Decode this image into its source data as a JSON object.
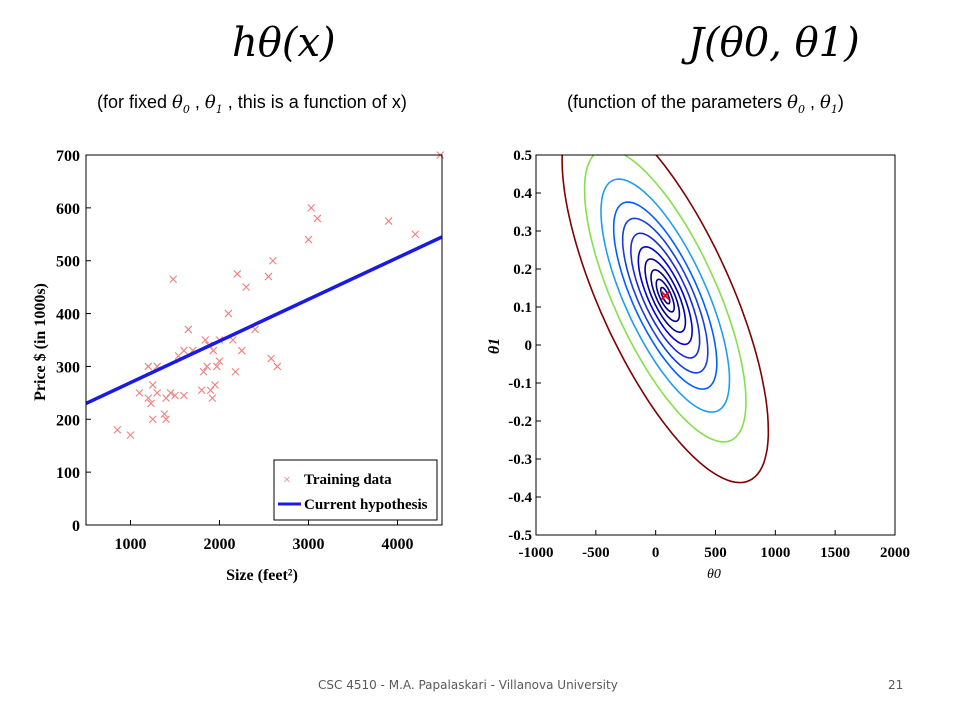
{
  "slide": {
    "left_formula": "hθ(x)",
    "right_formula": "J(θ0, θ1)",
    "left_subtitle": {
      "pre": "(for fixed ",
      "t0": "θ",
      "s0": "0",
      "mid": " , ",
      "t1": "θ",
      "s1": "1",
      "post": " , this is a function of x)"
    },
    "right_subtitle": {
      "pre": "(function of the parameters ",
      "t0": "θ",
      "s0": "0",
      "mid": " , ",
      "t1": "θ",
      "s1": "1",
      "post": ")"
    },
    "footer": "CSC 4510 - M.A. Papalaskari - Villanova University",
    "page_number": "21"
  },
  "chart_data": [
    {
      "type": "scatter",
      "title": "",
      "xlabel": "Size (feet²)",
      "ylabel": "Price $ (in 1000s)",
      "xlim": [
        500,
        4500
      ],
      "ylim": [
        0,
        700
      ],
      "xticks": [
        1000,
        2000,
        3000,
        4000
      ],
      "yticks": [
        0,
        100,
        200,
        300,
        400,
        500,
        600,
        700
      ],
      "legend_position": "bottom-right",
      "series": [
        {
          "name": "Training data",
          "marker": "x",
          "color": "#f08080",
          "points": [
            [
              852,
              180
            ],
            [
              1000,
              170
            ],
            [
              1100,
              250
            ],
            [
              1200,
              240
            ],
            [
              1200,
              300
            ],
            [
              1230,
              230
            ],
            [
              1250,
              200
            ],
            [
              1250,
              265
            ],
            [
              1300,
              250
            ],
            [
              1300,
              300
            ],
            [
              1380,
              210
            ],
            [
              1400,
              240
            ],
            [
              1400,
              200
            ],
            [
              1450,
              250
            ],
            [
              1480,
              465
            ],
            [
              1500,
              245
            ],
            [
              1540,
              320
            ],
            [
              1600,
              245
            ],
            [
              1600,
              330
            ],
            [
              1650,
              370
            ],
            [
              1700,
              330
            ],
            [
              1800,
              255
            ],
            [
              1820,
              290
            ],
            [
              1840,
              350
            ],
            [
              1860,
              300
            ],
            [
              1880,
              340
            ],
            [
              1900,
              255
            ],
            [
              1920,
              240
            ],
            [
              1930,
              330
            ],
            [
              1950,
              265
            ],
            [
              1970,
              300
            ],
            [
              2000,
              350
            ],
            [
              2000,
              310
            ],
            [
              2100,
              400
            ],
            [
              2150,
              350
            ],
            [
              2180,
              290
            ],
            [
              2200,
              475
            ],
            [
              2250,
              330
            ],
            [
              2300,
              450
            ],
            [
              2400,
              370
            ],
            [
              2550,
              470
            ],
            [
              2580,
              315
            ],
            [
              2600,
              500
            ],
            [
              2650,
              300
            ],
            [
              3000,
              540
            ],
            [
              3030,
              600
            ],
            [
              3100,
              580
            ],
            [
              3900,
              575
            ],
            [
              4200,
              550
            ],
            [
              4480,
              700
            ]
          ]
        },
        {
          "name": "Current hypothesis",
          "type": "line",
          "color": "#1a1ae6",
          "points": [
            [
              500,
              230
            ],
            [
              4500,
              545
            ]
          ]
        }
      ]
    },
    {
      "type": "contour",
      "title": "",
      "xlabel": "θ0",
      "ylabel": "θ1",
      "xlim": [
        -1000,
        2000
      ],
      "ylim": [
        -0.5,
        0.5
      ],
      "xticks": [
        -1000,
        -500,
        0,
        500,
        1000,
        1500,
        2000
      ],
      "xtick_labels": [
        "-1000",
        "-500",
        "0",
        "500",
        "1000",
        "1500",
        "2000"
      ],
      "yticks": [
        0.5,
        0.4,
        0.3,
        0.2,
        0.1,
        0,
        -0.1,
        -0.2,
        -0.3,
        -0.4,
        -0.5
      ],
      "ytick_labels": [
        "0.5",
        "0.4",
        "0.3",
        "0.2",
        "0.1",
        "0",
        "-0.1",
        "-0.2",
        "-0.3",
        "-0.4",
        "-0.5"
      ],
      "marker": {
        "theta0": 80,
        "theta1": 0.13,
        "symbol": "x",
        "color": "#e01010"
      },
      "levels": [
        {
          "k": 0.3,
          "color": "#00008b"
        },
        {
          "k": 0.6,
          "color": "#00008b"
        },
        {
          "k": 0.95,
          "color": "#00008b"
        },
        {
          "k": 1.35,
          "color": "#0000a0"
        },
        {
          "k": 1.8,
          "color": "#0000cd"
        },
        {
          "k": 2.3,
          "color": "#1a2bd6"
        },
        {
          "k": 2.85,
          "color": "#1540d8"
        },
        {
          "k": 3.45,
          "color": "#0060ff"
        },
        {
          "k": 4.3,
          "color": "#1e9ef0"
        },
        {
          "k": 5.4,
          "color": "#84e04a"
        },
        {
          "k": 6.9,
          "color": "#800000"
        }
      ]
    }
  ]
}
